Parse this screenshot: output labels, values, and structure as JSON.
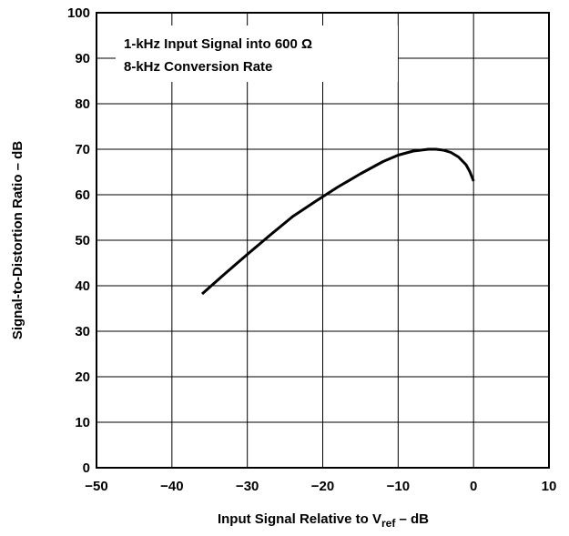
{
  "chart_data": {
    "type": "line",
    "title": "",
    "annotation_lines": [
      "1-kHz Input Signal into 600 Ω",
      "8-kHz Conversion Rate"
    ],
    "xlabel": {
      "main": "Input Signal Relative to V",
      "subscript": "ref",
      "suffix": " – dB"
    },
    "ylabel": "Signal-to-Distortion Ratio – dB",
    "xlim": [
      -50,
      10
    ],
    "ylim": [
      0,
      100
    ],
    "xticks": [
      -50,
      -40,
      -30,
      -20,
      -10,
      0,
      10
    ],
    "xtick_labels": [
      "−50",
      "−40",
      "−30",
      "−20",
      "−10",
      "0",
      "10"
    ],
    "yticks": [
      0,
      10,
      20,
      30,
      40,
      50,
      60,
      70,
      80,
      90,
      100
    ],
    "ytick_labels": [
      "0",
      "10",
      "20",
      "30",
      "40",
      "50",
      "60",
      "70",
      "80",
      "90",
      "100"
    ],
    "grid": true,
    "series": [
      {
        "x": [
          -36,
          -33,
          -30,
          -27,
          -24,
          -21,
          -18,
          -15,
          -12,
          -10,
          -8,
          -6,
          -5,
          -4,
          -3,
          -2,
          -1,
          -0.5,
          0
        ],
        "y": [
          38.2,
          42.6,
          46.9,
          51.1,
          55.2,
          58.5,
          61.7,
          64.6,
          67.3,
          68.7,
          69.6,
          70.0,
          70.0,
          69.8,
          69.3,
          68.3,
          66.6,
          65.1,
          63.0
        ]
      }
    ]
  }
}
